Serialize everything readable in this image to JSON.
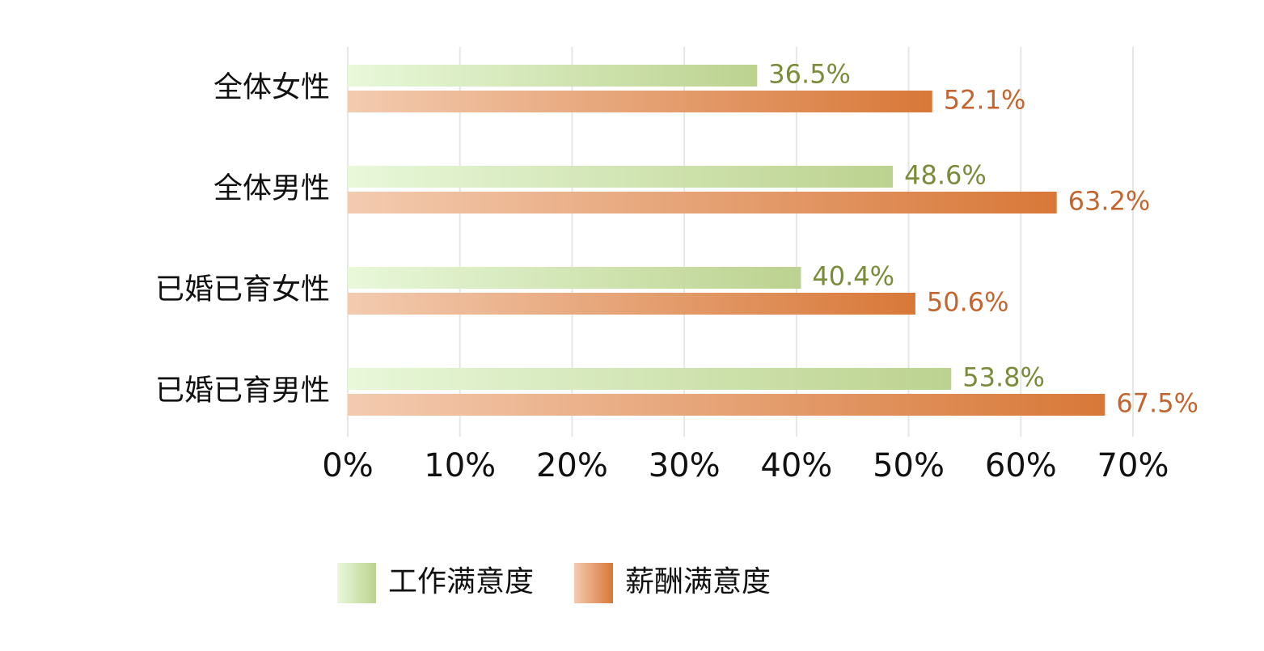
{
  "chart_data": {
    "type": "bar",
    "orientation": "horizontal",
    "categories": [
      "全体女性",
      "全体男性",
      "已婚已育女性",
      "已婚已育男性"
    ],
    "series": [
      {
        "name": "工作满意度",
        "color": "#7a8c3a",
        "gradient": [
          "#e8f8da",
          "#bcd28f"
        ],
        "values": [
          36.5,
          48.6,
          40.4,
          53.8
        ],
        "value_labels": [
          "36.5%",
          "48.6%",
          "40.4%",
          "53.8%"
        ]
      },
      {
        "name": "薪酬满意度",
        "color": "#c4652f",
        "gradient": [
          "#f3cbb0",
          "#d87838"
        ],
        "values": [
          52.1,
          63.2,
          50.6,
          67.5
        ],
        "value_labels": [
          "52.1%",
          "63.2%",
          "50.6%",
          "67.5%"
        ]
      }
    ],
    "xlim": [
      0,
      70
    ],
    "xticks": [
      {
        "value": 0,
        "label": "0%"
      },
      {
        "value": 10,
        "label": "10%"
      },
      {
        "value": 20,
        "label": "20%"
      },
      {
        "value": 30,
        "label": "30%"
      },
      {
        "value": 40,
        "label": "40%"
      },
      {
        "value": 50,
        "label": "50%"
      },
      {
        "value": 60,
        "label": "60%"
      },
      {
        "value": 70,
        "label": "70%"
      }
    ],
    "grid": true,
    "legend": "bottom"
  }
}
